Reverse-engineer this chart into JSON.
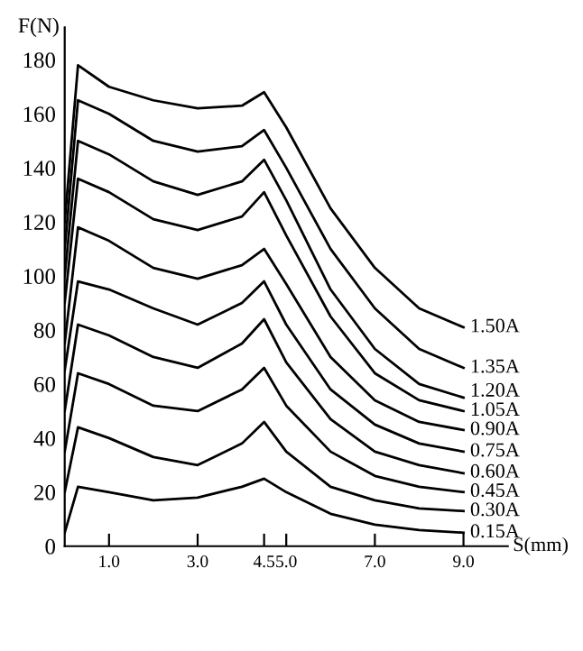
{
  "chart_data": {
    "type": "line",
    "xlabel": "S(mm)",
    "ylabel": "F(N)",
    "x": [
      0,
      0.3,
      1.0,
      2.0,
      3.0,
      4.0,
      4.5,
      5.0,
      6.0,
      7.0,
      8.0,
      9.0
    ],
    "series": [
      {
        "name": "1.50A",
        "color": "#000000",
        "values": [
          120,
          178,
          170,
          165,
          162,
          163,
          168,
          155,
          125,
          103,
          88,
          81
        ]
      },
      {
        "name": "1.35A",
        "color": "#000000",
        "values": [
          110,
          165,
          160,
          150,
          146,
          148,
          154,
          140,
          110,
          88,
          73,
          66
        ]
      },
      {
        "name": "1.20A",
        "color": "#000000",
        "values": [
          100,
          150,
          145,
          135,
          130,
          135,
          143,
          128,
          95,
          73,
          60,
          55
        ]
      },
      {
        "name": "1.05A",
        "color": "#000000",
        "values": [
          90,
          136,
          131,
          121,
          117,
          122,
          131,
          115,
          85,
          64,
          54,
          50
        ]
      },
      {
        "name": "0.90A",
        "color": "#000000",
        "values": [
          75,
          118,
          113,
          103,
          99,
          104,
          110,
          97,
          70,
          54,
          46,
          43
        ]
      },
      {
        "name": "0.75A",
        "color": "#000000",
        "values": [
          65,
          98,
          95,
          88,
          82,
          90,
          98,
          82,
          58,
          45,
          38,
          35
        ]
      },
      {
        "name": "0.60A",
        "color": "#000000",
        "values": [
          50,
          82,
          78,
          70,
          66,
          75,
          84,
          68,
          47,
          35,
          30,
          27
        ]
      },
      {
        "name": "0.45A",
        "color": "#000000",
        "values": [
          35,
          64,
          60,
          52,
          50,
          58,
          66,
          52,
          35,
          26,
          22,
          20
        ]
      },
      {
        "name": "0.30A",
        "color": "#000000",
        "values": [
          20,
          44,
          40,
          33,
          30,
          38,
          46,
          35,
          22,
          17,
          14,
          13
        ]
      },
      {
        "name": "0.15A",
        "color": "#000000",
        "values": [
          5,
          22,
          20,
          17,
          18,
          22,
          25,
          20,
          12,
          8,
          6,
          5
        ]
      }
    ],
    "xlim": [
      0,
      10
    ],
    "ylim": [
      0,
      192
    ],
    "xticks": [
      {
        "value": 1.0,
        "label": "1.0"
      },
      {
        "value": 3.0,
        "label": "3.0"
      },
      {
        "value": 4.5,
        "label": "4.5"
      },
      {
        "value": 5.0,
        "label": "5.0"
      },
      {
        "value": 7.0,
        "label": "7.0"
      },
      {
        "value": 9.0,
        "label": "9.0"
      }
    ],
    "yticks": [
      0,
      20,
      40,
      60,
      80,
      100,
      120,
      140,
      160,
      180
    ],
    "grid": false,
    "legend": false,
    "marker": "none",
    "line_style": "solid"
  }
}
